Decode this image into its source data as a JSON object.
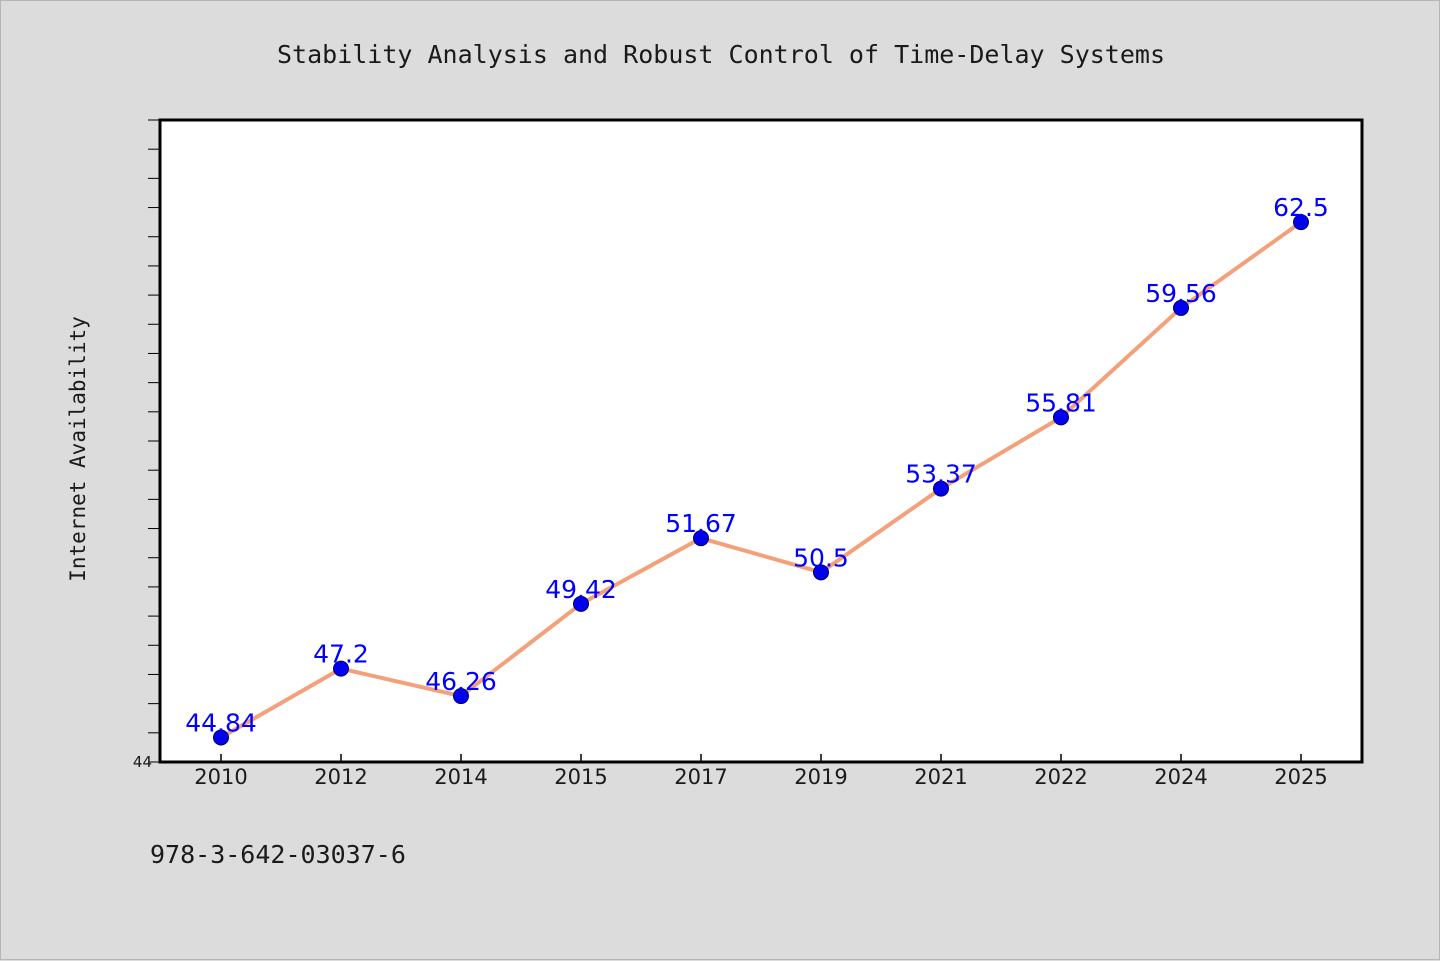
{
  "chart_data": {
    "type": "line",
    "title": "Stability Analysis and Robust Control of Time-Delay Systems",
    "xlabel": "",
    "ylabel": "Internet Availability",
    "categories": [
      "2010",
      "2012",
      "2014",
      "2015",
      "2017",
      "2019",
      "2021",
      "2022",
      "2024",
      "2025"
    ],
    "values": [
      44.84,
      47.2,
      46.26,
      49.42,
      51.67,
      50.5,
      53.37,
      55.81,
      59.56,
      62.5
    ],
    "value_labels": [
      "44.84",
      "47.2",
      "46.26",
      "49.42",
      "51.67",
      "50.5",
      "53.37",
      "55.81",
      "59.56",
      "62.5"
    ],
    "ylim": [
      44,
      66
    ],
    "y_tick_labels": [
      "44"
    ],
    "y_minor_tick_step": 1,
    "grid": false,
    "legend": "none",
    "colors": {
      "line": "#f4a07a",
      "marker": "#0000ee",
      "marker_edge": "#000066",
      "data_label": "#0000ff",
      "plot_background": "#ffffff",
      "page_background": "#dcdcdc"
    }
  },
  "footer": {
    "isbn": "978-3-642-03037-6"
  }
}
